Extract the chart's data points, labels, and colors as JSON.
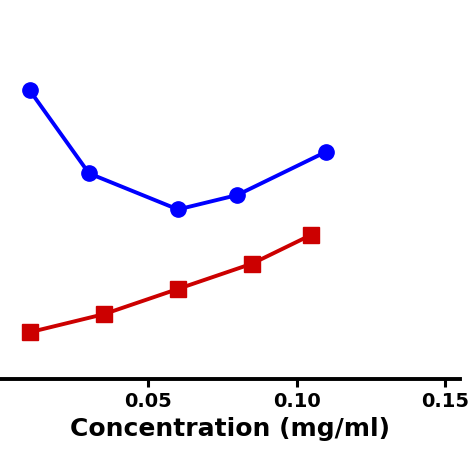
{
  "blue_x": [
    0.01,
    0.03,
    0.06,
    0.08,
    0.11
  ],
  "blue_y": [
    1.05,
    0.82,
    0.72,
    0.76,
    0.88
  ],
  "red_x": [
    0.01,
    0.035,
    0.06,
    0.085,
    0.105
  ],
  "red_y": [
    0.38,
    0.43,
    0.5,
    0.57,
    0.65
  ],
  "blue_color": "#0000FF",
  "red_color": "#CC0000",
  "xlabel": "Concentration (mg/ml)",
  "xlim": [
    0.0,
    0.155
  ],
  "ylim": [
    0.25,
    1.3
  ],
  "xticks": [
    0.05,
    0.1,
    0.15
  ],
  "xlabel_fontsize": 18,
  "xlabel_fontweight": "bold",
  "line_width": 2.8,
  "marker_size": 11,
  "tick_fontsize": 14,
  "tick_fontweight": "bold",
  "background_color": "#ffffff"
}
